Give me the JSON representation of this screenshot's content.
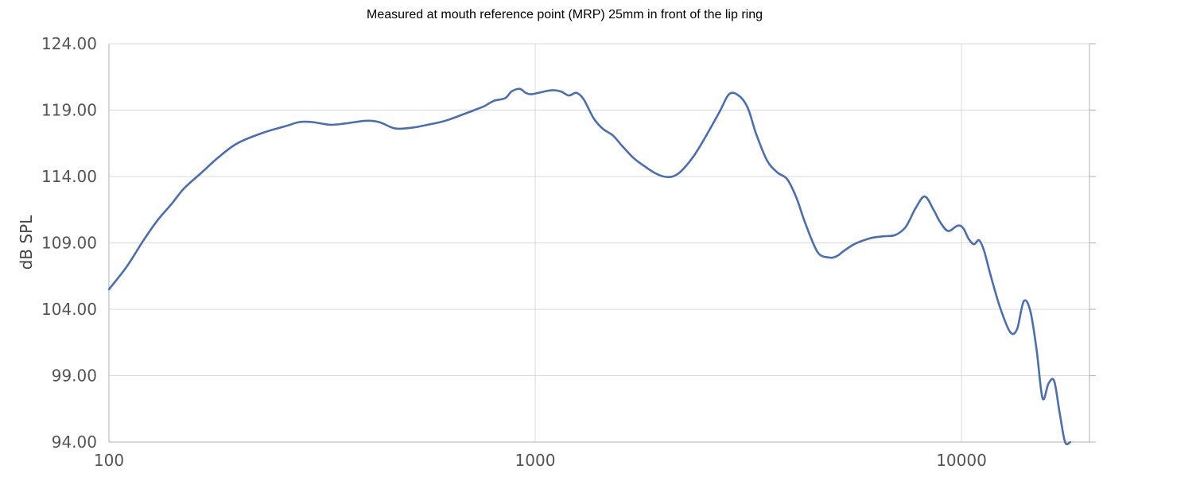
{
  "chart_data": {
    "type": "line",
    "title": "Measured at mouth reference point (MRP) 25mm in front of the lip ring",
    "xlabel": "",
    "ylabel": "dB SPL",
    "x_scale": "log",
    "xlim": [
      100,
      18000
    ],
    "ylim": [
      94,
      124
    ],
    "x_ticks": [
      100,
      1000,
      10000
    ],
    "x_tick_labels": [
      "100",
      "1000",
      "10000"
    ],
    "y_ticks": [
      94,
      99,
      104,
      109,
      114,
      119,
      124
    ],
    "y_tick_labels": [
      "94.00",
      "99.00",
      "104.00",
      "109.00",
      "114.00",
      "119.00",
      "124.00"
    ],
    "grid": true,
    "line_color": "#4a6eb0",
    "series": [
      {
        "x": [
          100,
          110,
          120,
          130,
          140,
          150,
          165,
          180,
          200,
          230,
          260,
          280,
          300,
          330,
          360,
          400,
          430,
          460,
          480,
          520,
          560,
          600,
          630,
          680,
          720,
          760,
          800,
          850,
          880,
          920,
          950,
          980,
          1050,
          1100,
          1150,
          1200,
          1250,
          1300,
          1370,
          1440,
          1520,
          1600,
          1700,
          1800,
          1900,
          2000,
          2100,
          2200,
          2350,
          2500,
          2700,
          2850,
          3000,
          3150,
          3300,
          3500,
          3700,
          3900,
          4100,
          4300,
          4600,
          4900,
          5100,
          5300,
          5600,
          5900,
          6200,
          6600,
          7000,
          7400,
          7800,
          8200,
          8600,
          8900,
          9300,
          9800,
          10100,
          10400,
          10700,
          11000,
          11300,
          11700,
          12300,
          13000,
          13500,
          14000,
          14500,
          15000,
          15500,
          16000,
          16500,
          17000,
          17500,
          18000
        ],
        "y": [
          105.5,
          107.2,
          109.1,
          110.7,
          111.9,
          113.1,
          114.3,
          115.4,
          116.5,
          117.3,
          117.8,
          118.1,
          118.1,
          117.9,
          118,
          118.2,
          118.1,
          117.7,
          117.6,
          117.7,
          117.9,
          118.1,
          118.3,
          118.7,
          119,
          119.3,
          119.7,
          119.9,
          120.4,
          120.6,
          120.3,
          120.2,
          120.4,
          120.5,
          120.4,
          120.1,
          120.3,
          119.8,
          118.4,
          117.6,
          117.1,
          116.3,
          115.4,
          114.8,
          114.3,
          114,
          114,
          114.4,
          115.5,
          116.9,
          118.8,
          120.2,
          120.1,
          119.2,
          117.2,
          115.2,
          114.3,
          113.8,
          112.4,
          110.5,
          108.3,
          107.9,
          108,
          108.4,
          108.9,
          109.2,
          109.4,
          109.5,
          109.6,
          110.2,
          111.6,
          112.5,
          111.5,
          110.6,
          109.9,
          110.3,
          110.1,
          109.3,
          108.9,
          109.2,
          108.4,
          106.6,
          104.2,
          102.3,
          102.5,
          104.6,
          103.9,
          101,
          97.3,
          98.4,
          98.6,
          96.2,
          94,
          94
        ]
      }
    ]
  }
}
